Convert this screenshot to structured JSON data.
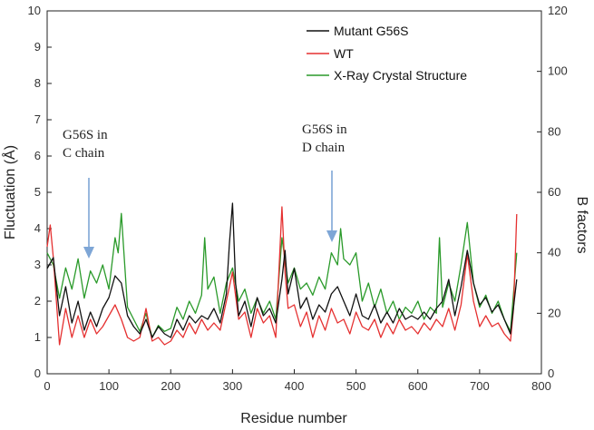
{
  "chart_data": {
    "type": "line",
    "title": "",
    "xlabel": "Residue number",
    "ylabel": "Fluctuation (Å)",
    "y2label": "B factors",
    "xlim": [
      0,
      800
    ],
    "ylim": [
      0,
      10
    ],
    "y2lim": [
      0,
      120
    ],
    "xticks": [
      "0",
      "100",
      "200",
      "300",
      "400",
      "500",
      "600",
      "700",
      "800"
    ],
    "yticks": [
      "0",
      "1",
      "2",
      "3",
      "4",
      "5",
      "6",
      "7",
      "8",
      "9",
      "10"
    ],
    "y2ticks": [
      "0",
      "20",
      "40",
      "60",
      "80",
      "100",
      "120"
    ],
    "grid": false,
    "legend_position": "top-right",
    "series": [
      {
        "name": "Mutant G56S",
        "color": "#111111",
        "axis": "left",
        "x": [
          0,
          10,
          20,
          30,
          40,
          50,
          60,
          70,
          80,
          90,
          100,
          110,
          120,
          130,
          140,
          150,
          160,
          170,
          180,
          190,
          200,
          210,
          220,
          230,
          240,
          250,
          260,
          270,
          280,
          290,
          295,
          300,
          305,
          310,
          320,
          330,
          340,
          350,
          360,
          370,
          380,
          385,
          390,
          400,
          410,
          420,
          430,
          440,
          450,
          460,
          470,
          480,
          490,
          500,
          510,
          520,
          530,
          540,
          550,
          560,
          570,
          580,
          590,
          600,
          610,
          620,
          630,
          640,
          650,
          660,
          670,
          680,
          690,
          700,
          710,
          720,
          730,
          740,
          750,
          760
        ],
        "y": [
          2.9,
          3.2,
          1.6,
          2.4,
          1.4,
          2.0,
          1.2,
          1.7,
          1.3,
          1.8,
          2.1,
          2.7,
          2.5,
          1.6,
          1.3,
          1.1,
          1.5,
          1.0,
          1.3,
          1.1,
          1.0,
          1.5,
          1.2,
          1.6,
          1.4,
          1.6,
          1.5,
          1.8,
          1.4,
          2.2,
          3.6,
          4.7,
          2.5,
          1.6,
          2.0,
          1.3,
          2.1,
          1.6,
          1.8,
          1.4,
          2.6,
          3.4,
          2.2,
          2.9,
          1.8,
          2.1,
          1.5,
          1.9,
          1.7,
          2.2,
          2.4,
          2.0,
          1.6,
          2.2,
          1.6,
          1.5,
          1.9,
          1.4,
          1.7,
          1.4,
          1.8,
          1.5,
          1.6,
          1.5,
          1.7,
          1.5,
          1.8,
          2.0,
          2.6,
          1.6,
          2.4,
          3.4,
          2.5,
          1.9,
          2.1,
          1.7,
          1.9,
          1.5,
          1.1,
          2.6
        ]
      },
      {
        "name": "WT",
        "color": "#e53030",
        "axis": "left",
        "x": [
          0,
          5,
          10,
          20,
          30,
          40,
          50,
          60,
          70,
          80,
          90,
          100,
          110,
          120,
          130,
          140,
          150,
          160,
          170,
          180,
          190,
          200,
          210,
          220,
          230,
          240,
          250,
          260,
          270,
          280,
          290,
          300,
          310,
          320,
          330,
          340,
          350,
          360,
          370,
          380,
          385,
          390,
          400,
          410,
          420,
          430,
          440,
          450,
          460,
          470,
          480,
          490,
          500,
          510,
          520,
          530,
          540,
          550,
          560,
          570,
          580,
          590,
          600,
          610,
          620,
          630,
          640,
          650,
          660,
          670,
          680,
          690,
          700,
          710,
          720,
          730,
          740,
          750,
          755,
          760
        ],
        "y": [
          3.5,
          4.1,
          3.2,
          0.8,
          1.8,
          1.0,
          1.6,
          1.0,
          1.5,
          1.1,
          1.3,
          1.6,
          1.9,
          1.5,
          1.0,
          0.9,
          1.0,
          1.8,
          0.9,
          1.0,
          0.8,
          0.9,
          1.2,
          1.0,
          1.4,
          1.1,
          1.5,
          1.2,
          1.4,
          1.2,
          2.0,
          2.8,
          1.5,
          1.7,
          1.0,
          1.8,
          1.4,
          1.6,
          1.0,
          4.6,
          2.8,
          1.8,
          1.9,
          1.3,
          1.7,
          1.0,
          1.6,
          1.2,
          1.8,
          1.4,
          1.5,
          1.1,
          1.7,
          1.3,
          1.2,
          1.5,
          1.0,
          1.4,
          1.1,
          1.5,
          1.2,
          1.3,
          1.1,
          1.4,
          1.2,
          1.5,
          1.3,
          1.8,
          1.2,
          1.9,
          3.3,
          2.0,
          1.3,
          1.6,
          1.3,
          1.4,
          1.1,
          0.9,
          1.8,
          4.4
        ]
      },
      {
        "name": "X-Ray Crystal Structure",
        "color": "#2a9a2a",
        "axis": "right",
        "x": [
          0,
          10,
          20,
          30,
          40,
          50,
          60,
          70,
          80,
          90,
          100,
          110,
          115,
          120,
          130,
          140,
          150,
          160,
          170,
          180,
          190,
          200,
          210,
          220,
          230,
          240,
          250,
          255,
          260,
          270,
          280,
          290,
          300,
          310,
          320,
          330,
          340,
          350,
          360,
          370,
          380,
          390,
          400,
          410,
          420,
          430,
          440,
          450,
          460,
          470,
          475,
          480,
          490,
          500,
          510,
          520,
          530,
          540,
          550,
          560,
          570,
          580,
          590,
          600,
          610,
          620,
          630,
          635,
          640,
          650,
          660,
          670,
          680,
          690,
          700,
          710,
          720,
          730,
          740,
          750,
          760
        ],
        "y": [
          40,
          36,
          25,
          35,
          28,
          38,
          25,
          34,
          30,
          36,
          28,
          45,
          40,
          53,
          22,
          18,
          14,
          20,
          12,
          16,
          14,
          15,
          22,
          18,
          24,
          20,
          26,
          45,
          28,
          32,
          20,
          30,
          35,
          24,
          28,
          20,
          25,
          20,
          24,
          18,
          45,
          30,
          35,
          28,
          30,
          26,
          32,
          28,
          40,
          36,
          48,
          38,
          36,
          40,
          24,
          30,
          22,
          28,
          20,
          24,
          18,
          22,
          20,
          24,
          18,
          22,
          20,
          45,
          22,
          30,
          24,
          36,
          50,
          30,
          22,
          26,
          20,
          24,
          18,
          14,
          40
        ]
      }
    ],
    "annotations": [
      {
        "text_line1": "G56S in",
        "text_line2": "C chain",
        "x": 65,
        "y": 3.2
      },
      {
        "text_line1": "G56S in",
        "text_line2": "D chain",
        "x": 460,
        "y": 3.5
      }
    ]
  }
}
